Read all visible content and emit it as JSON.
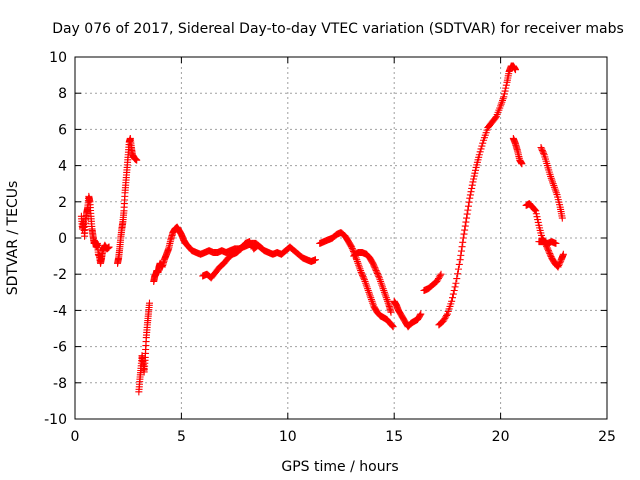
{
  "chart_data": {
    "type": "scatter",
    "title": "Day 076 of 2017, Sidereal Day-to-day VTEC variation (SDTVAR) for receiver mabs",
    "xlabel": "GPS time / hours",
    "ylabel": "SDTVAR / TECUs",
    "xlim": [
      0,
      25
    ],
    "ylim": [
      -10,
      10
    ],
    "xticks": [
      0,
      5,
      10,
      15,
      20,
      25
    ],
    "yticks": [
      -10,
      -8,
      -6,
      -4,
      -2,
      0,
      2,
      4,
      6,
      8,
      10
    ],
    "xtick_labels": [
      "0",
      "5",
      "10",
      "15",
      "20",
      "25"
    ],
    "ytick_labels": [
      "-10",
      "-8",
      "-6",
      "-4",
      "-2",
      "0",
      "2",
      "4",
      "6",
      "8",
      "10"
    ],
    "grid": true,
    "marker": "+",
    "color": "#ff0000",
    "series": [
      {
        "name": "SDTVAR",
        "segments": [
          [
            [
              0.3,
              1.2
            ],
            [
              0.35,
              0.5
            ],
            [
              0.4,
              0.9
            ],
            [
              0.45,
              0.1
            ],
            [
              0.5,
              1.0
            ],
            [
              0.55,
              1.4
            ],
            [
              0.6,
              1.7
            ],
            [
              0.65,
              2.3
            ],
            [
              0.7,
              2.0
            ],
            [
              0.75,
              1.2
            ],
            [
              0.8,
              0.5
            ],
            [
              0.85,
              0.1
            ],
            [
              0.9,
              -0.3
            ],
            [
              0.95,
              -0.2
            ],
            [
              1.0,
              -0.5
            ],
            [
              1.05,
              -0.3
            ],
            [
              1.1,
              -0.9
            ],
            [
              1.15,
              -1.0
            ],
            [
              1.2,
              -1.4
            ],
            [
              1.25,
              -1.1
            ],
            [
              1.3,
              -0.7
            ],
            [
              1.4,
              -0.4
            ],
            [
              1.5,
              -0.6
            ],
            [
              1.6,
              -0.5
            ]
          ],
          [
            [
              2.0,
              -1.4
            ],
            [
              2.05,
              -1.1
            ],
            [
              2.1,
              -0.6
            ],
            [
              2.15,
              0.0
            ],
            [
              2.2,
              0.5
            ],
            [
              2.25,
              0.9
            ],
            [
              2.3,
              1.5
            ],
            [
              2.35,
              2.5
            ],
            [
              2.4,
              3.2
            ],
            [
              2.45,
              3.9
            ],
            [
              2.5,
              4.6
            ],
            [
              2.55,
              5.3
            ],
            [
              2.6,
              5.5
            ],
            [
              2.65,
              5.0
            ],
            [
              2.7,
              4.6
            ],
            [
              2.8,
              4.4
            ],
            [
              2.9,
              4.3
            ]
          ],
          [
            [
              3.0,
              -8.5
            ],
            [
              3.05,
              -7.8
            ],
            [
              3.1,
              -7.2
            ],
            [
              3.15,
              -6.5
            ],
            [
              3.2,
              -6.9
            ],
            [
              3.25,
              -7.4
            ],
            [
              3.3,
              -6.6
            ],
            [
              3.35,
              -5.5
            ],
            [
              3.4,
              -4.8
            ],
            [
              3.45,
              -4.2
            ],
            [
              3.5,
              -3.6
            ]
          ],
          [
            [
              3.7,
              -2.4
            ],
            [
              3.75,
              -2.1
            ],
            [
              3.8,
              -2.0
            ],
            [
              3.85,
              -1.8
            ],
            [
              3.9,
              -1.9
            ],
            [
              3.95,
              -1.6
            ],
            [
              4.0,
              -1.4
            ],
            [
              4.1,
              -1.6
            ],
            [
              4.2,
              -1.2
            ],
            [
              4.3,
              -0.9
            ],
            [
              4.4,
              -0.6
            ],
            [
              4.5,
              -0.1
            ],
            [
              4.6,
              0.3
            ],
            [
              4.7,
              0.5
            ],
            [
              4.8,
              0.6
            ],
            [
              4.9,
              0.4
            ],
            [
              5.0,
              0.2
            ],
            [
              5.1,
              -0.1
            ],
            [
              5.2,
              -0.3
            ],
            [
              5.35,
              -0.5
            ],
            [
              5.5,
              -0.7
            ],
            [
              5.7,
              -0.8
            ],
            [
              5.9,
              -0.9
            ],
            [
              6.1,
              -0.8
            ],
            [
              6.3,
              -0.7
            ],
            [
              6.5,
              -0.8
            ],
            [
              6.7,
              -0.8
            ],
            [
              6.9,
              -0.7
            ],
            [
              7.1,
              -0.8
            ],
            [
              7.3,
              -0.7
            ],
            [
              7.5,
              -0.6
            ],
            [
              7.7,
              -0.6
            ],
            [
              7.9,
              -0.5
            ],
            [
              8.1,
              -0.4
            ],
            [
              8.3,
              -0.3
            ],
            [
              8.5,
              -0.3
            ],
            [
              8.7,
              -0.5
            ],
            [
              8.9,
              -0.7
            ],
            [
              9.1,
              -0.8
            ],
            [
              9.3,
              -0.9
            ],
            [
              9.5,
              -0.8
            ],
            [
              9.7,
              -0.9
            ],
            [
              9.9,
              -0.7
            ],
            [
              10.1,
              -0.5
            ],
            [
              10.3,
              -0.7
            ],
            [
              10.5,
              -0.9
            ],
            [
              10.7,
              -1.1
            ],
            [
              10.9,
              -1.2
            ],
            [
              11.1,
              -1.3
            ],
            [
              11.3,
              -1.2
            ]
          ],
          [
            [
              6.0,
              -2.1
            ],
            [
              6.2,
              -2.0
            ],
            [
              6.4,
              -2.2
            ],
            [
              6.6,
              -1.9
            ],
            [
              6.8,
              -1.6
            ],
            [
              7.0,
              -1.4
            ],
            [
              7.2,
              -1.1
            ],
            [
              7.4,
              -0.9
            ],
            [
              7.6,
              -0.8
            ],
            [
              7.8,
              -0.6
            ],
            [
              8.0,
              -0.3
            ],
            [
              8.2,
              -0.2
            ],
            [
              8.4,
              -0.6
            ],
            [
              8.6,
              -0.4
            ],
            [
              8.8,
              -0.6
            ]
          ],
          [
            [
              11.5,
              -0.3
            ],
            [
              11.7,
              -0.2
            ],
            [
              11.9,
              -0.1
            ],
            [
              12.1,
              0.0
            ],
            [
              12.3,
              0.2
            ],
            [
              12.5,
              0.3
            ],
            [
              12.7,
              0.1
            ],
            [
              12.85,
              -0.2
            ],
            [
              13.0,
              -0.5
            ],
            [
              13.15,
              -0.9
            ],
            [
              13.3,
              -1.4
            ],
            [
              13.45,
              -1.9
            ],
            [
              13.6,
              -2.3
            ],
            [
              13.75,
              -2.8
            ],
            [
              13.9,
              -3.3
            ],
            [
              14.05,
              -3.8
            ],
            [
              14.2,
              -4.1
            ],
            [
              14.35,
              -4.3
            ],
            [
              14.5,
              -4.4
            ],
            [
              14.65,
              -4.5
            ],
            [
              14.8,
              -4.7
            ],
            [
              14.95,
              -4.9
            ]
          ],
          [
            [
              13.1,
              -1.0
            ],
            [
              13.3,
              -0.8
            ],
            [
              13.5,
              -0.8
            ],
            [
              13.7,
              -0.9
            ],
            [
              13.85,
              -1.1
            ],
            [
              14.0,
              -1.4
            ],
            [
              14.15,
              -1.8
            ],
            [
              14.3,
              -2.2
            ],
            [
              14.45,
              -2.7
            ],
            [
              14.6,
              -3.2
            ],
            [
              14.75,
              -3.7
            ],
            [
              14.85,
              -4.1
            ]
          ],
          [
            [
              15.0,
              -3.5
            ],
            [
              15.1,
              -3.7
            ],
            [
              15.2,
              -4.0
            ],
            [
              15.35,
              -4.3
            ],
            [
              15.5,
              -4.6
            ],
            [
              15.65,
              -4.9
            ],
            [
              15.8,
              -4.7
            ],
            [
              15.95,
              -4.6
            ],
            [
              16.1,
              -4.5
            ],
            [
              16.25,
              -4.2
            ]
          ],
          [
            [
              16.4,
              -2.9
            ],
            [
              16.6,
              -2.8
            ],
            [
              16.8,
              -2.6
            ],
            [
              17.0,
              -2.4
            ],
            [
              17.2,
              -2.0
            ]
          ],
          [
            [
              17.1,
              -4.8
            ],
            [
              17.3,
              -4.6
            ],
            [
              17.5,
              -4.2
            ],
            [
              17.7,
              -3.5
            ],
            [
              17.9,
              -2.5
            ],
            [
              18.1,
              -1.2
            ],
            [
              18.25,
              0.0
            ],
            [
              18.4,
              1.1
            ],
            [
              18.55,
              2.2
            ],
            [
              18.7,
              3.1
            ],
            [
              18.85,
              3.9
            ],
            [
              19.0,
              4.6
            ],
            [
              19.2,
              5.4
            ],
            [
              19.4,
              6.1
            ],
            [
              19.6,
              6.4
            ],
            [
              19.8,
              6.7
            ],
            [
              20.0,
              7.3
            ],
            [
              20.15,
              7.8
            ],
            [
              20.3,
              8.6
            ],
            [
              20.4,
              9.2
            ],
            [
              20.5,
              9.5
            ],
            [
              20.6,
              9.5
            ],
            [
              20.7,
              9.3
            ]
          ],
          [
            [
              20.6,
              5.5
            ],
            [
              20.7,
              5.2
            ],
            [
              20.8,
              4.8
            ],
            [
              20.9,
              4.3
            ],
            [
              21.0,
              4.1
            ]
          ],
          [
            [
              21.2,
              1.8
            ],
            [
              21.35,
              1.9
            ],
            [
              21.5,
              1.7
            ],
            [
              21.65,
              1.5
            ],
            [
              21.8,
              0.7
            ],
            [
              21.95,
              0.0
            ],
            [
              22.1,
              -0.3
            ],
            [
              22.25,
              -0.7
            ],
            [
              22.4,
              -1.1
            ],
            [
              22.55,
              -1.4
            ],
            [
              22.7,
              -1.6
            ],
            [
              22.85,
              -1.2
            ],
            [
              22.95,
              -0.9
            ]
          ],
          [
            [
              21.8,
              -0.2
            ],
            [
              22.0,
              -0.2
            ],
            [
              22.2,
              -0.3
            ],
            [
              22.4,
              -0.2
            ],
            [
              22.6,
              -0.3
            ]
          ],
          [
            [
              21.9,
              5.0
            ],
            [
              22.05,
              4.6
            ],
            [
              22.2,
              4.0
            ],
            [
              22.35,
              3.4
            ],
            [
              22.5,
              2.9
            ],
            [
              22.65,
              2.4
            ],
            [
              22.8,
              1.7
            ],
            [
              22.9,
              1.1
            ]
          ]
        ]
      }
    ]
  }
}
